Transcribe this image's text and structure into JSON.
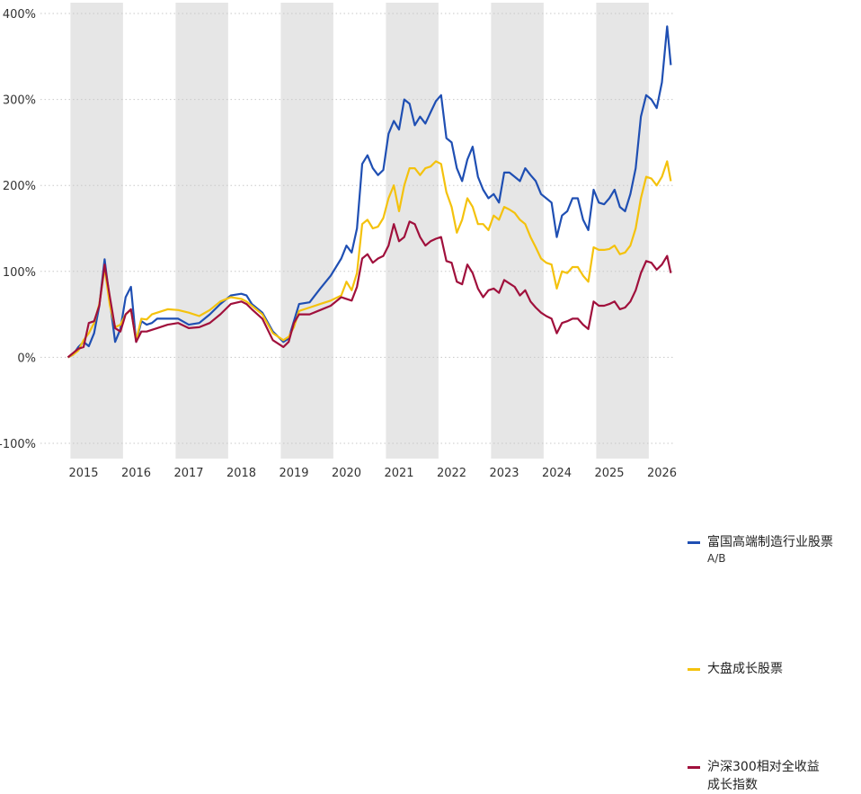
{
  "chart_data": {
    "type": "line",
    "ylim": [
      -100,
      400
    ],
    "y_ticks": [
      400,
      300,
      200,
      100,
      0,
      -100
    ],
    "y_tick_labels": [
      "400%",
      "300%",
      "200%",
      "100%",
      "0%",
      "-100%"
    ],
    "x_range": [
      2014.55,
      2026.25
    ],
    "x_ticks": [
      2015,
      2016,
      2017,
      2018,
      2019,
      2020,
      2021,
      2022,
      2023,
      2024,
      2025,
      2026
    ],
    "x_tick_labels": [
      "2015",
      "2016",
      "2017",
      "2018",
      "2019",
      "2020",
      "2021",
      "2022",
      "2023",
      "2024",
      "2025",
      "2026"
    ],
    "shaded_years": [
      [
        2015,
        2016
      ],
      [
        2017,
        2018
      ],
      [
        2019,
        2020
      ],
      [
        2021,
        2022
      ],
      [
        2023,
        2024
      ],
      [
        2025,
        2026
      ]
    ],
    "grid": "horizontal dotted",
    "legend_position": "right",
    "series": [
      {
        "name": "富国高端制造行业股票",
        "name_suffix": "A/B",
        "color": "#1f4fb3",
        "points": [
          [
            2014.7,
            0
          ],
          [
            2014.8,
            3
          ],
          [
            2014.9,
            12
          ],
          [
            2015.0,
            18
          ],
          [
            2015.1,
            13
          ],
          [
            2015.2,
            28
          ],
          [
            2015.3,
            60
          ],
          [
            2015.4,
            114
          ],
          [
            2015.5,
            65
          ],
          [
            2015.6,
            18
          ],
          [
            2015.7,
            33
          ],
          [
            2015.8,
            70
          ],
          [
            2015.9,
            82
          ],
          [
            2016.0,
            18
          ],
          [
            2016.1,
            42
          ],
          [
            2016.2,
            38
          ],
          [
            2016.3,
            40
          ],
          [
            2016.4,
            45
          ],
          [
            2016.6,
            45
          ],
          [
            2016.8,
            45
          ],
          [
            2017.0,
            38
          ],
          [
            2017.2,
            40
          ],
          [
            2017.4,
            50
          ],
          [
            2017.6,
            62
          ],
          [
            2017.8,
            72
          ],
          [
            2018.0,
            74
          ],
          [
            2018.1,
            72
          ],
          [
            2018.2,
            62
          ],
          [
            2018.4,
            52
          ],
          [
            2018.6,
            30
          ],
          [
            2018.8,
            18
          ],
          [
            2018.9,
            22
          ],
          [
            2019.0,
            42
          ],
          [
            2019.1,
            62
          ],
          [
            2019.3,
            64
          ],
          [
            2019.5,
            80
          ],
          [
            2019.7,
            95
          ],
          [
            2019.9,
            115
          ],
          [
            2020.0,
            130
          ],
          [
            2020.1,
            122
          ],
          [
            2020.2,
            150
          ],
          [
            2020.3,
            225
          ],
          [
            2020.4,
            235
          ],
          [
            2020.5,
            220
          ],
          [
            2020.6,
            212
          ],
          [
            2020.7,
            218
          ],
          [
            2020.8,
            260
          ],
          [
            2020.9,
            275
          ],
          [
            2021.0,
            265
          ],
          [
            2021.1,
            300
          ],
          [
            2021.2,
            295
          ],
          [
            2021.3,
            270
          ],
          [
            2021.4,
            280
          ],
          [
            2021.5,
            272
          ],
          [
            2021.6,
            285
          ],
          [
            2021.7,
            298
          ],
          [
            2021.8,
            305
          ],
          [
            2021.9,
            255
          ],
          [
            2022.0,
            250
          ],
          [
            2022.1,
            220
          ],
          [
            2022.2,
            205
          ],
          [
            2022.3,
            230
          ],
          [
            2022.4,
            245
          ],
          [
            2022.5,
            210
          ],
          [
            2022.6,
            195
          ],
          [
            2022.7,
            185
          ],
          [
            2022.8,
            190
          ],
          [
            2022.9,
            180
          ],
          [
            2023.0,
            215
          ],
          [
            2023.1,
            215
          ],
          [
            2023.2,
            210
          ],
          [
            2023.3,
            205
          ],
          [
            2023.4,
            220
          ],
          [
            2023.5,
            212
          ],
          [
            2023.6,
            205
          ],
          [
            2023.7,
            190
          ],
          [
            2023.8,
            185
          ],
          [
            2023.9,
            180
          ],
          [
            2024.0,
            140
          ],
          [
            2024.1,
            165
          ],
          [
            2024.2,
            170
          ],
          [
            2024.3,
            185
          ],
          [
            2024.4,
            185
          ],
          [
            2024.5,
            160
          ],
          [
            2024.6,
            148
          ],
          [
            2024.7,
            195
          ],
          [
            2024.8,
            180
          ],
          [
            2024.9,
            178
          ],
          [
            2025.0,
            185
          ],
          [
            2025.1,
            195
          ],
          [
            2025.2,
            175
          ],
          [
            2025.3,
            170
          ],
          [
            2025.4,
            190
          ],
          [
            2025.5,
            220
          ],
          [
            2025.6,
            280
          ],
          [
            2025.7,
            305
          ],
          [
            2025.8,
            300
          ],
          [
            2025.9,
            290
          ],
          [
            2026.0,
            320
          ],
          [
            2026.1,
            385
          ],
          [
            2026.17,
            340
          ]
        ]
      },
      {
        "name": "大盘成长股票",
        "color": "#f4c20d",
        "points": [
          [
            2014.7,
            0
          ],
          [
            2014.8,
            3
          ],
          [
            2014.9,
            8
          ],
          [
            2015.0,
            20
          ],
          [
            2015.1,
            28
          ],
          [
            2015.2,
            40
          ],
          [
            2015.3,
            62
          ],
          [
            2015.4,
            104
          ],
          [
            2015.5,
            60
          ],
          [
            2015.6,
            35
          ],
          [
            2015.7,
            38
          ],
          [
            2015.8,
            50
          ],
          [
            2015.9,
            55
          ],
          [
            2016.0,
            20
          ],
          [
            2016.1,
            45
          ],
          [
            2016.2,
            44
          ],
          [
            2016.3,
            50
          ],
          [
            2016.4,
            52
          ],
          [
            2016.6,
            56
          ],
          [
            2016.8,
            55
          ],
          [
            2017.0,
            52
          ],
          [
            2017.2,
            48
          ],
          [
            2017.4,
            55
          ],
          [
            2017.6,
            65
          ],
          [
            2017.8,
            70
          ],
          [
            2018.0,
            68
          ],
          [
            2018.1,
            65
          ],
          [
            2018.2,
            60
          ],
          [
            2018.4,
            50
          ],
          [
            2018.6,
            28
          ],
          [
            2018.8,
            20
          ],
          [
            2018.9,
            24
          ],
          [
            2019.0,
            35
          ],
          [
            2019.1,
            54
          ],
          [
            2019.3,
            58
          ],
          [
            2019.5,
            62
          ],
          [
            2019.7,
            66
          ],
          [
            2019.9,
            72
          ],
          [
            2020.0,
            88
          ],
          [
            2020.1,
            78
          ],
          [
            2020.2,
            98
          ],
          [
            2020.3,
            155
          ],
          [
            2020.4,
            160
          ],
          [
            2020.5,
            150
          ],
          [
            2020.6,
            152
          ],
          [
            2020.7,
            162
          ],
          [
            2020.8,
            185
          ],
          [
            2020.9,
            200
          ],
          [
            2021.0,
            170
          ],
          [
            2021.1,
            200
          ],
          [
            2021.2,
            220
          ],
          [
            2021.3,
            220
          ],
          [
            2021.4,
            212
          ],
          [
            2021.5,
            220
          ],
          [
            2021.6,
            222
          ],
          [
            2021.7,
            228
          ],
          [
            2021.8,
            225
          ],
          [
            2021.9,
            192
          ],
          [
            2022.0,
            175
          ],
          [
            2022.1,
            145
          ],
          [
            2022.2,
            160
          ],
          [
            2022.3,
            185
          ],
          [
            2022.4,
            175
          ],
          [
            2022.5,
            155
          ],
          [
            2022.6,
            155
          ],
          [
            2022.7,
            148
          ],
          [
            2022.8,
            165
          ],
          [
            2022.9,
            160
          ],
          [
            2023.0,
            175
          ],
          [
            2023.1,
            172
          ],
          [
            2023.2,
            168
          ],
          [
            2023.3,
            160
          ],
          [
            2023.4,
            155
          ],
          [
            2023.5,
            140
          ],
          [
            2023.6,
            128
          ],
          [
            2023.7,
            115
          ],
          [
            2023.8,
            110
          ],
          [
            2023.9,
            108
          ],
          [
            2024.0,
            80
          ],
          [
            2024.1,
            100
          ],
          [
            2024.2,
            98
          ],
          [
            2024.3,
            105
          ],
          [
            2024.4,
            105
          ],
          [
            2024.5,
            95
          ],
          [
            2024.6,
            88
          ],
          [
            2024.7,
            128
          ],
          [
            2024.8,
            125
          ],
          [
            2024.9,
            125
          ],
          [
            2025.0,
            126
          ],
          [
            2025.1,
            130
          ],
          [
            2025.2,
            120
          ],
          [
            2025.3,
            122
          ],
          [
            2025.4,
            130
          ],
          [
            2025.5,
            150
          ],
          [
            2025.6,
            185
          ],
          [
            2025.7,
            210
          ],
          [
            2025.8,
            208
          ],
          [
            2025.9,
            200
          ],
          [
            2026.0,
            210
          ],
          [
            2026.1,
            228
          ],
          [
            2026.17,
            205
          ]
        ]
      },
      {
        "name": "沪深300相对全收益成长指数",
        "color": "#a0103c",
        "points": [
          [
            2014.7,
            0
          ],
          [
            2014.8,
            5
          ],
          [
            2014.9,
            10
          ],
          [
            2015.0,
            12
          ],
          [
            2015.1,
            40
          ],
          [
            2015.2,
            42
          ],
          [
            2015.3,
            60
          ],
          [
            2015.4,
            108
          ],
          [
            2015.5,
            70
          ],
          [
            2015.6,
            34
          ],
          [
            2015.7,
            30
          ],
          [
            2015.8,
            50
          ],
          [
            2015.9,
            56
          ],
          [
            2016.0,
            18
          ],
          [
            2016.1,
            30
          ],
          [
            2016.2,
            30
          ],
          [
            2016.3,
            32
          ],
          [
            2016.4,
            34
          ],
          [
            2016.6,
            38
          ],
          [
            2016.8,
            40
          ],
          [
            2017.0,
            34
          ],
          [
            2017.2,
            35
          ],
          [
            2017.4,
            40
          ],
          [
            2017.6,
            50
          ],
          [
            2017.8,
            62
          ],
          [
            2018.0,
            65
          ],
          [
            2018.1,
            62
          ],
          [
            2018.2,
            56
          ],
          [
            2018.4,
            45
          ],
          [
            2018.6,
            20
          ],
          [
            2018.8,
            12
          ],
          [
            2018.9,
            18
          ],
          [
            2019.0,
            40
          ],
          [
            2019.1,
            50
          ],
          [
            2019.3,
            50
          ],
          [
            2019.5,
            55
          ],
          [
            2019.7,
            60
          ],
          [
            2019.9,
            70
          ],
          [
            2020.0,
            68
          ],
          [
            2020.1,
            66
          ],
          [
            2020.2,
            82
          ],
          [
            2020.3,
            115
          ],
          [
            2020.4,
            120
          ],
          [
            2020.5,
            110
          ],
          [
            2020.6,
            115
          ],
          [
            2020.7,
            118
          ],
          [
            2020.8,
            130
          ],
          [
            2020.9,
            155
          ],
          [
            2021.0,
            135
          ],
          [
            2021.1,
            140
          ],
          [
            2021.2,
            158
          ],
          [
            2021.3,
            155
          ],
          [
            2021.4,
            140
          ],
          [
            2021.5,
            130
          ],
          [
            2021.6,
            135
          ],
          [
            2021.7,
            138
          ],
          [
            2021.8,
            140
          ],
          [
            2021.9,
            112
          ],
          [
            2022.0,
            110
          ],
          [
            2022.1,
            88
          ],
          [
            2022.2,
            85
          ],
          [
            2022.3,
            108
          ],
          [
            2022.4,
            98
          ],
          [
            2022.5,
            80
          ],
          [
            2022.6,
            70
          ],
          [
            2022.7,
            78
          ],
          [
            2022.8,
            80
          ],
          [
            2022.9,
            75
          ],
          [
            2023.0,
            90
          ],
          [
            2023.1,
            86
          ],
          [
            2023.2,
            82
          ],
          [
            2023.3,
            72
          ],
          [
            2023.4,
            78
          ],
          [
            2023.5,
            65
          ],
          [
            2023.6,
            58
          ],
          [
            2023.7,
            52
          ],
          [
            2023.8,
            48
          ],
          [
            2023.9,
            45
          ],
          [
            2024.0,
            28
          ],
          [
            2024.1,
            40
          ],
          [
            2024.2,
            42
          ],
          [
            2024.3,
            45
          ],
          [
            2024.4,
            45
          ],
          [
            2024.5,
            38
          ],
          [
            2024.6,
            33
          ],
          [
            2024.7,
            65
          ],
          [
            2024.8,
            60
          ],
          [
            2024.9,
            60
          ],
          [
            2025.0,
            62
          ],
          [
            2025.1,
            65
          ],
          [
            2025.2,
            56
          ],
          [
            2025.3,
            58
          ],
          [
            2025.4,
            65
          ],
          [
            2025.5,
            78
          ],
          [
            2025.6,
            98
          ],
          [
            2025.7,
            112
          ],
          [
            2025.8,
            110
          ],
          [
            2025.9,
            102
          ],
          [
            2026.0,
            108
          ],
          [
            2026.1,
            118
          ],
          [
            2026.17,
            98
          ]
        ]
      }
    ]
  }
}
